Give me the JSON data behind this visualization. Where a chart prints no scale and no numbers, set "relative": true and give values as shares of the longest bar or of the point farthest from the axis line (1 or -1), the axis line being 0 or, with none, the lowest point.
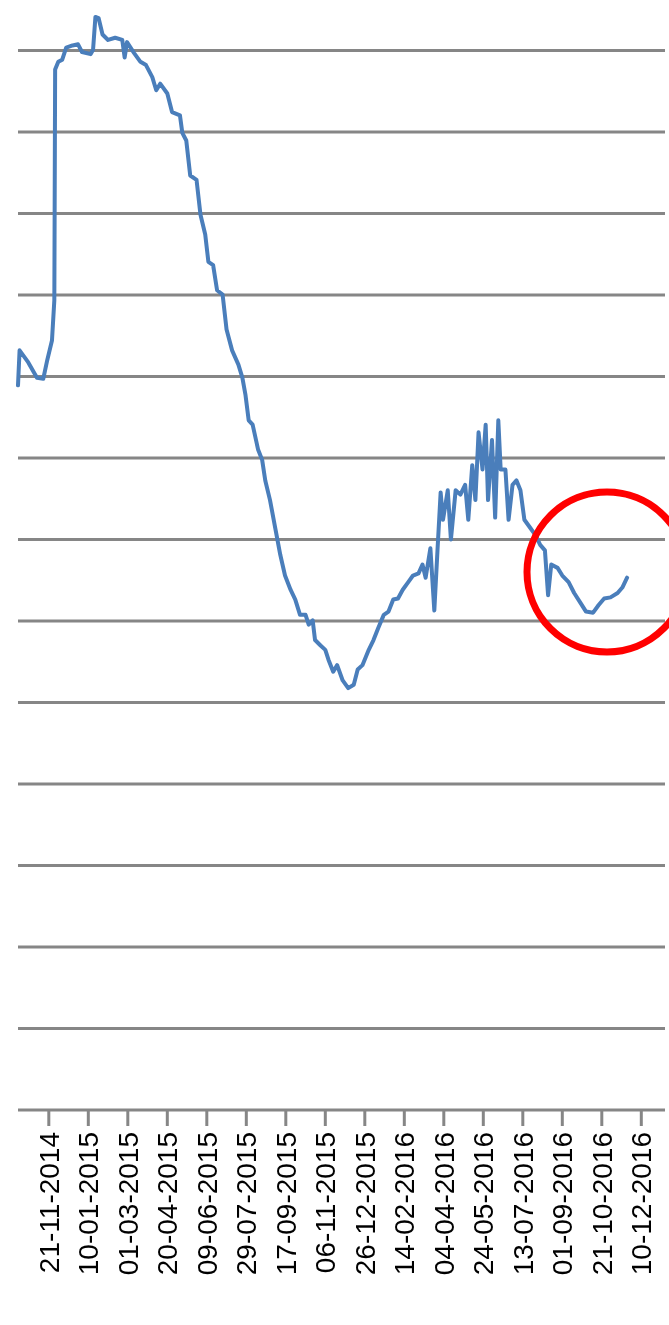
{
  "chart_data": {
    "type": "line",
    "relative": true,
    "grid": true,
    "marker": "none",
    "line_style": "solid",
    "xlim": [
      "2014-10-13",
      "2017-01-09"
    ],
    "xticks": [
      {
        "value": "2014-11-21",
        "label": "21-11-2014"
      },
      {
        "value": "2015-01-10",
        "label": "10-01-2015"
      },
      {
        "value": "2015-03-01",
        "label": "01-03-2015"
      },
      {
        "value": "2015-04-20",
        "label": "20-04-2015"
      },
      {
        "value": "2015-06-09",
        "label": "09-06-2015"
      },
      {
        "value": "2015-07-29",
        "label": "29-07-2015"
      },
      {
        "value": "2015-09-17",
        "label": "17-09-2015"
      },
      {
        "value": "2015-11-06",
        "label": "06-11-2015"
      },
      {
        "value": "2015-12-26",
        "label": "26-12-2015"
      },
      {
        "value": "2016-02-14",
        "label": "14-02-2016"
      },
      {
        "value": "2016-04-04",
        "label": "04-04-2016"
      },
      {
        "value": "2016-05-24",
        "label": "24-05-2016"
      },
      {
        "value": "2016-07-13",
        "label": "13-07-2016"
      },
      {
        "value": "2016-09-01",
        "label": "01-09-2016"
      },
      {
        "value": "2016-10-21",
        "label": "21-10-2016"
      },
      {
        "value": "2016-12-10",
        "label": "10-12-2016"
      }
    ],
    "x": [
      "2014-10-13",
      "2014-10-15",
      "2014-10-26",
      "2014-11-06",
      "2014-11-14",
      "2014-11-19",
      "2014-11-25",
      "2014-11-28",
      "2014-11-29",
      "2014-12-03",
      "2014-12-08",
      "2014-12-13",
      "2014-12-21",
      "2014-12-28",
      "2015-01-02",
      "2015-01-13",
      "2015-01-16",
      "2015-01-19",
      "2015-01-23",
      "2015-01-28",
      "2015-02-04",
      "2015-02-13",
      "2015-02-22",
      "2015-02-25",
      "2015-02-28",
      "2015-03-09",
      "2015-03-17",
      "2015-03-24",
      "2015-04-01",
      "2015-04-06",
      "2015-04-11",
      "2015-04-20",
      "2015-04-26",
      "2015-05-06",
      "2015-05-09",
      "2015-05-14",
      "2015-05-19",
      "2015-05-27",
      "2015-06-01",
      "2015-06-07",
      "2015-06-11",
      "2015-06-17",
      "2015-06-22",
      "2015-06-29",
      "2015-07-04",
      "2015-07-11",
      "2015-07-19",
      "2015-07-24",
      "2015-07-28",
      "2015-08-01",
      "2015-08-06",
      "2015-08-13",
      "2015-08-18",
      "2015-08-22",
      "2015-08-28",
      "2015-09-04",
      "2015-09-10",
      "2015-09-16",
      "2015-09-23",
      "2015-09-29",
      "2015-10-05",
      "2015-10-12",
      "2015-10-16",
      "2015-10-21",
      "2015-10-24",
      "2015-10-31",
      "2015-11-06",
      "2015-11-10",
      "2015-11-16",
      "2015-11-21",
      "2015-11-28",
      "2015-12-05",
      "2015-12-12",
      "2015-12-17",
      "2015-12-23",
      "2015-12-31",
      "2016-01-06",
      "2016-01-12",
      "2016-01-19",
      "2016-01-25",
      "2016-01-31",
      "2016-02-06",
      "2016-02-12",
      "2016-02-19",
      "2016-02-25",
      "2016-03-03",
      "2016-03-08",
      "2016-03-12",
      "2016-03-18",
      "2016-03-23",
      "2016-03-27",
      "2016-03-31",
      "2016-04-03",
      "2016-04-09",
      "2016-04-13",
      "2016-04-19",
      "2016-04-25",
      "2016-05-01",
      "2016-05-05",
      "2016-05-10",
      "2016-05-14",
      "2016-05-18",
      "2016-05-23",
      "2016-05-27",
      "2016-05-30",
      "2016-06-04",
      "2016-06-08",
      "2016-06-12",
      "2016-06-15",
      "2016-06-21",
      "2016-06-25",
      "2016-06-30",
      "2016-07-05",
      "2016-07-10",
      "2016-07-15",
      "2016-07-23",
      "2016-07-29",
      "2016-08-04",
      "2016-08-10",
      "2016-08-14",
      "2016-08-18",
      "2016-08-26",
      "2016-09-01",
      "2016-09-09",
      "2016-09-16",
      "2016-09-24",
      "2016-10-01",
      "2016-10-10",
      "2016-10-17",
      "2016-10-24",
      "2016-11-01",
      "2016-11-10",
      "2016-11-16",
      "2016-11-22"
    ],
    "series": [
      {
        "color": "#4a7ebb",
        "values": [
          0.663,
          0.695,
          0.684,
          0.67,
          0.669,
          0.686,
          0.704,
          0.741,
          0.952,
          0.959,
          0.961,
          0.972,
          0.974,
          0.975,
          0.968,
          0.966,
          0.97,
          1.0,
          0.999,
          0.984,
          0.979,
          0.981,
          0.979,
          0.963,
          0.977,
          0.967,
          0.959,
          0.956,
          0.945,
          0.933,
          0.939,
          0.93,
          0.913,
          0.91,
          0.894,
          0.887,
          0.855,
          0.851,
          0.819,
          0.801,
          0.776,
          0.773,
          0.75,
          0.746,
          0.714,
          0.695,
          0.682,
          0.67,
          0.654,
          0.631,
          0.627,
          0.604,
          0.595,
          0.576,
          0.558,
          0.531,
          0.508,
          0.489,
          0.476,
          0.467,
          0.453,
          0.453,
          0.444,
          0.448,
          0.43,
          0.425,
          0.421,
          0.412,
          0.401,
          0.407,
          0.393,
          0.386,
          0.389,
          0.403,
          0.407,
          0.421,
          0.43,
          0.441,
          0.453,
          0.456,
          0.467,
          0.468,
          0.476,
          0.483,
          0.489,
          0.491,
          0.499,
          0.487,
          0.514,
          0.457,
          0.512,
          0.565,
          0.54,
          0.567,
          0.522,
          0.567,
          0.563,
          0.572,
          0.54,
          0.59,
          0.558,
          0.62,
          0.586,
          0.627,
          0.558,
          0.613,
          0.542,
          0.631,
          0.586,
          0.586,
          0.54,
          0.572,
          0.576,
          0.567,
          0.54,
          0.532,
          0.526,
          0.517,
          0.512,
          0.471,
          0.499,
          0.496,
          0.489,
          0.483,
          0.473,
          0.464,
          0.456,
          0.455,
          0.462,
          0.468,
          0.469,
          0.473,
          0.478,
          0.487
        ]
      }
    ]
  }
}
